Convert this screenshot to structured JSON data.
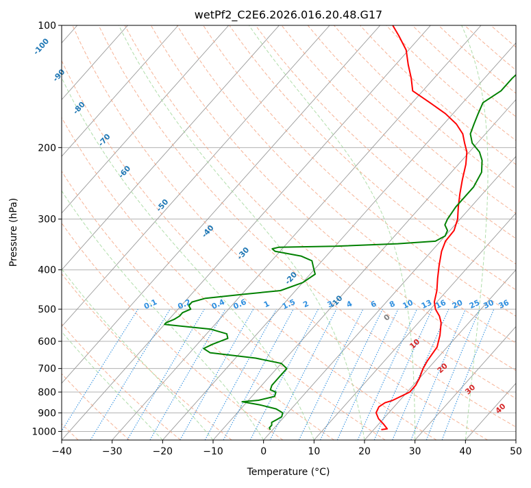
{
  "chart_data": {
    "type": "line",
    "title": "wetPf2_C2E6.2026.016.20.48.G17",
    "xlabel": "Temperature (°C)",
    "ylabel": "Pressure (hPa)",
    "xlim": [
      -40,
      50
    ],
    "ylim": [
      1050,
      100
    ],
    "y_scale": "log",
    "grid": true,
    "x_ticks": [
      "−40",
      "−30",
      "−20",
      "−10",
      "0",
      "10",
      "20",
      "30",
      "40",
      "50"
    ],
    "y_ticks": [
      {
        "p": 100,
        "label": "100"
      },
      {
        "p": 200,
        "label": "200"
      },
      {
        "p": 300,
        "label": "300"
      },
      {
        "p": 400,
        "label": "400"
      },
      {
        "p": 500,
        "label": "500"
      },
      {
        "p": 600,
        "label": "600"
      },
      {
        "p": 700,
        "label": "700"
      },
      {
        "p": 800,
        "label": "800"
      },
      {
        "p": 900,
        "label": "900"
      },
      {
        "p": 1000,
        "label": "1000"
      }
    ],
    "colors": {
      "temperature": "#ff0000",
      "dewpoint": "#008000",
      "dry_adiabats": "#f4a582",
      "moist_adiabats": "#a6d9a0",
      "mixing_ratio": "#2f8fdf",
      "isotherms": "#999999"
    },
    "series": [
      {
        "color": "#ff0000",
        "points": [
          [
            21.5,
            990
          ],
          [
            22.5,
            985
          ],
          [
            21,
            960
          ],
          [
            19,
            930
          ],
          [
            17.5,
            900
          ],
          [
            17,
            870
          ],
          [
            17.5,
            850
          ],
          [
            18.5,
            840
          ],
          [
            19.5,
            820
          ],
          [
            20.5,
            800
          ],
          [
            20.5,
            770
          ],
          [
            20,
            740
          ],
          [
            19,
            700
          ],
          [
            18.5,
            670
          ],
          [
            18.3,
            650
          ],
          [
            18,
            620
          ],
          [
            16.5,
            580
          ],
          [
            14.5,
            540
          ],
          [
            13,
            520
          ],
          [
            11,
            500
          ],
          [
            9.5,
            480
          ],
          [
            8,
            450
          ],
          [
            6,
            420
          ],
          [
            4,
            390
          ],
          [
            2,
            360
          ],
          [
            1,
            340
          ],
          [
            0.8,
            320
          ],
          [
            -0.5,
            300
          ],
          [
            -2.5,
            280
          ],
          [
            -4.5,
            260
          ],
          [
            -6.5,
            240
          ],
          [
            -8.5,
            220
          ],
          [
            -10.5,
            205
          ],
          [
            -12.5,
            195
          ],
          [
            -14.5,
            185
          ],
          [
            -17.5,
            175
          ],
          [
            -21.5,
            165
          ],
          [
            -26.5,
            155
          ],
          [
            -32,
            145
          ],
          [
            -34.5,
            135
          ],
          [
            -37.5,
            125
          ],
          [
            -40.5,
            115
          ],
          [
            -44.5,
            106
          ],
          [
            -47.5,
            100
          ]
        ]
      },
      {
        "color": "#008000",
        "points": [
          [
            -0.5,
            990
          ],
          [
            -1,
            980
          ],
          [
            -1,
            965
          ],
          [
            -1.5,
            950
          ],
          [
            -1,
            935
          ],
          [
            -0.5,
            920
          ],
          [
            -1,
            900
          ],
          [
            -3,
            880
          ],
          [
            -7,
            860
          ],
          [
            -11,
            845
          ],
          [
            -8,
            838
          ],
          [
            -5.5,
            820
          ],
          [
            -6,
            800
          ],
          [
            -7.5,
            790
          ],
          [
            -8,
            770
          ],
          [
            -8,
            750
          ],
          [
            -8,
            735
          ],
          [
            -8,
            720
          ],
          [
            -8,
            700
          ],
          [
            -10,
            680
          ],
          [
            -16,
            660
          ],
          [
            -26,
            640
          ],
          [
            -28,
            625
          ],
          [
            -27,
            610
          ],
          [
            -25,
            590
          ],
          [
            -26,
            575
          ],
          [
            -30,
            560
          ],
          [
            -40,
            545
          ],
          [
            -40,
            540
          ],
          [
            -39,
            530
          ],
          [
            -38.5,
            520
          ],
          [
            -38.5,
            510
          ],
          [
            -37.5,
            500
          ],
          [
            -38.5,
            490
          ],
          [
            -38.5,
            480
          ],
          [
            -36.5,
            470
          ],
          [
            -30,
            460
          ],
          [
            -23,
            450
          ],
          [
            -20,
            430
          ],
          [
            -19,
            410
          ],
          [
            -20,
            400
          ],
          [
            -21,
            390
          ],
          [
            -22,
            380
          ],
          [
            -25,
            370
          ],
          [
            -31,
            360
          ],
          [
            -32,
            355
          ],
          [
            -31,
            352
          ],
          [
            -20,
            350
          ],
          [
            -8,
            345
          ],
          [
            -1,
            340
          ],
          [
            0,
            330
          ],
          [
            -0.5,
            320
          ],
          [
            -2,
            310
          ],
          [
            -2.5,
            300
          ],
          [
            -3,
            280
          ],
          [
            -3,
            250
          ],
          [
            -4,
            230
          ],
          [
            -6,
            215
          ],
          [
            -8,
            205
          ],
          [
            -11,
            195
          ],
          [
            -13,
            185
          ],
          [
            -14,
            175
          ],
          [
            -15,
            165
          ],
          [
            -16,
            155
          ],
          [
            -14.5,
            145
          ],
          [
            -14.5,
            135
          ],
          [
            -14,
            125
          ],
          [
            -13,
            115
          ],
          [
            -11,
            106
          ],
          [
            -9,
            100
          ]
        ]
      }
    ],
    "dry_adiabat_labels": [
      {
        "text": "0",
        "t": 24.5,
        "p": 525,
        "color": "#808080"
      },
      {
        "text": "10",
        "t": 30,
        "p": 610,
        "color": "#d62728"
      },
      {
        "text": "20",
        "t": 35.5,
        "p": 700,
        "color": "#d62728"
      },
      {
        "text": "30",
        "t": 41,
        "p": 790,
        "color": "#d62728"
      },
      {
        "text": "40",
        "t": 47,
        "p": 880,
        "color": "#d62728"
      }
    ],
    "isotherm_labels": [
      {
        "text": "-100",
        "t": -44,
        "p": 113
      },
      {
        "text": "-90",
        "t": -40.5,
        "p": 133
      },
      {
        "text": "-80",
        "t": -36.5,
        "p": 160
      },
      {
        "text": "-70",
        "t": -31.5,
        "p": 192
      },
      {
        "text": "-60",
        "t": -27.5,
        "p": 230
      },
      {
        "text": "-50",
        "t": -20,
        "p": 278
      },
      {
        "text": "-40",
        "t": -11,
        "p": 322
      },
      {
        "text": "-30",
        "t": -4,
        "p": 365
      },
      {
        "text": "-20",
        "t": 5.5,
        "p": 420
      },
      {
        "text": "-10",
        "t": 14.5,
        "p": 480
      }
    ],
    "mixing_ratio_labels": [
      {
        "text": "0.1",
        "x": -22.2
      },
      {
        "text": "0.2",
        "x": -15.5
      },
      {
        "text": "0.4",
        "x": -8.8
      },
      {
        "text": "0.6",
        "x": -4.5
      },
      {
        "text": "1",
        "x": 0.8
      },
      {
        "text": "1.5",
        "x": 5.2
      },
      {
        "text": "2",
        "x": 8.6
      },
      {
        "text": "3",
        "x": 13.4
      },
      {
        "text": "4",
        "x": 17.2
      },
      {
        "text": "6",
        "x": 22
      },
      {
        "text": "8",
        "x": 25.7
      },
      {
        "text": "10",
        "x": 28.8
      },
      {
        "text": "13",
        "x": 32.5
      },
      {
        "text": "16",
        "x": 35.3
      },
      {
        "text": "20",
        "x": 38.6
      },
      {
        "text": "25",
        "x": 42
      },
      {
        "text": "30",
        "x": 44.8
      },
      {
        "text": "36",
        "x": 47.8
      }
    ]
  }
}
